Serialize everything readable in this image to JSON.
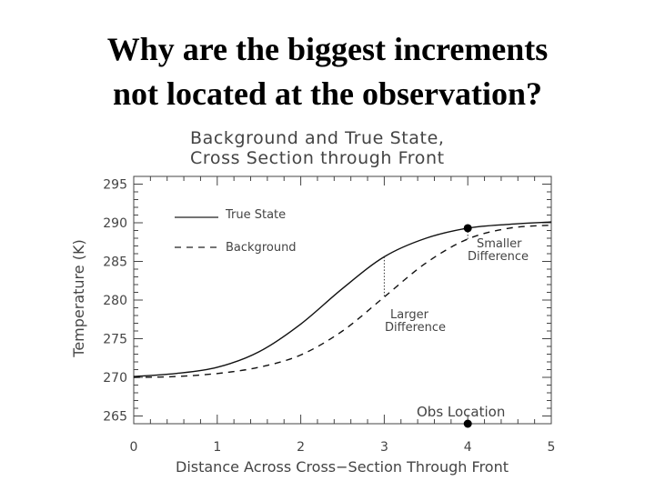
{
  "slide": {
    "title_line1": "Why are the biggest increments",
    "title_line2": "not located at the observation?"
  },
  "chart_data": {
    "type": "line",
    "title_line1": "Background and True State,",
    "title_line2": "Cross Section through Front",
    "xlabel": "Distance Across Cross−Section Through Front",
    "ylabel": "Temperature (K)",
    "xlim": [
      0,
      5
    ],
    "ylim": [
      264,
      296
    ],
    "x_ticks": [
      "0",
      "1",
      "2",
      "3",
      "4",
      "5"
    ],
    "y_ticks": [
      "265",
      "270",
      "275",
      "280",
      "285",
      "290",
      "295"
    ],
    "legend_placement": "top-left",
    "series": [
      {
        "name": "True State",
        "style": "solid",
        "x": [
          0,
          0.5,
          1,
          1.5,
          2,
          2.5,
          3,
          3.5,
          4,
          4.5,
          5
        ],
        "y": [
          270.1,
          270.5,
          271.3,
          273.3,
          276.9,
          281.5,
          285.6,
          288.0,
          289.3,
          289.8,
          290.1
        ]
      },
      {
        "name": "Background",
        "style": "dashed",
        "x": [
          0,
          0.5,
          1,
          1.5,
          2,
          2.5,
          3,
          3.5,
          4,
          4.5,
          5
        ],
        "y": [
          270.0,
          270.1,
          270.5,
          271.3,
          272.9,
          276.0,
          280.4,
          284.8,
          287.9,
          289.3,
          289.7
        ]
      }
    ],
    "annotations": [
      {
        "label_line1": "Smaller",
        "label_line2": "Difference",
        "x": 4,
        "y_top": 289.3,
        "y_bottom": 287.9
      },
      {
        "label_line1": "Larger",
        "label_line2": "Difference",
        "x": 3,
        "y_top": 285.6,
        "y_bottom": 280.4
      }
    ],
    "observation": {
      "label": "Obs Location",
      "x": 4,
      "y": 289.3
    }
  }
}
